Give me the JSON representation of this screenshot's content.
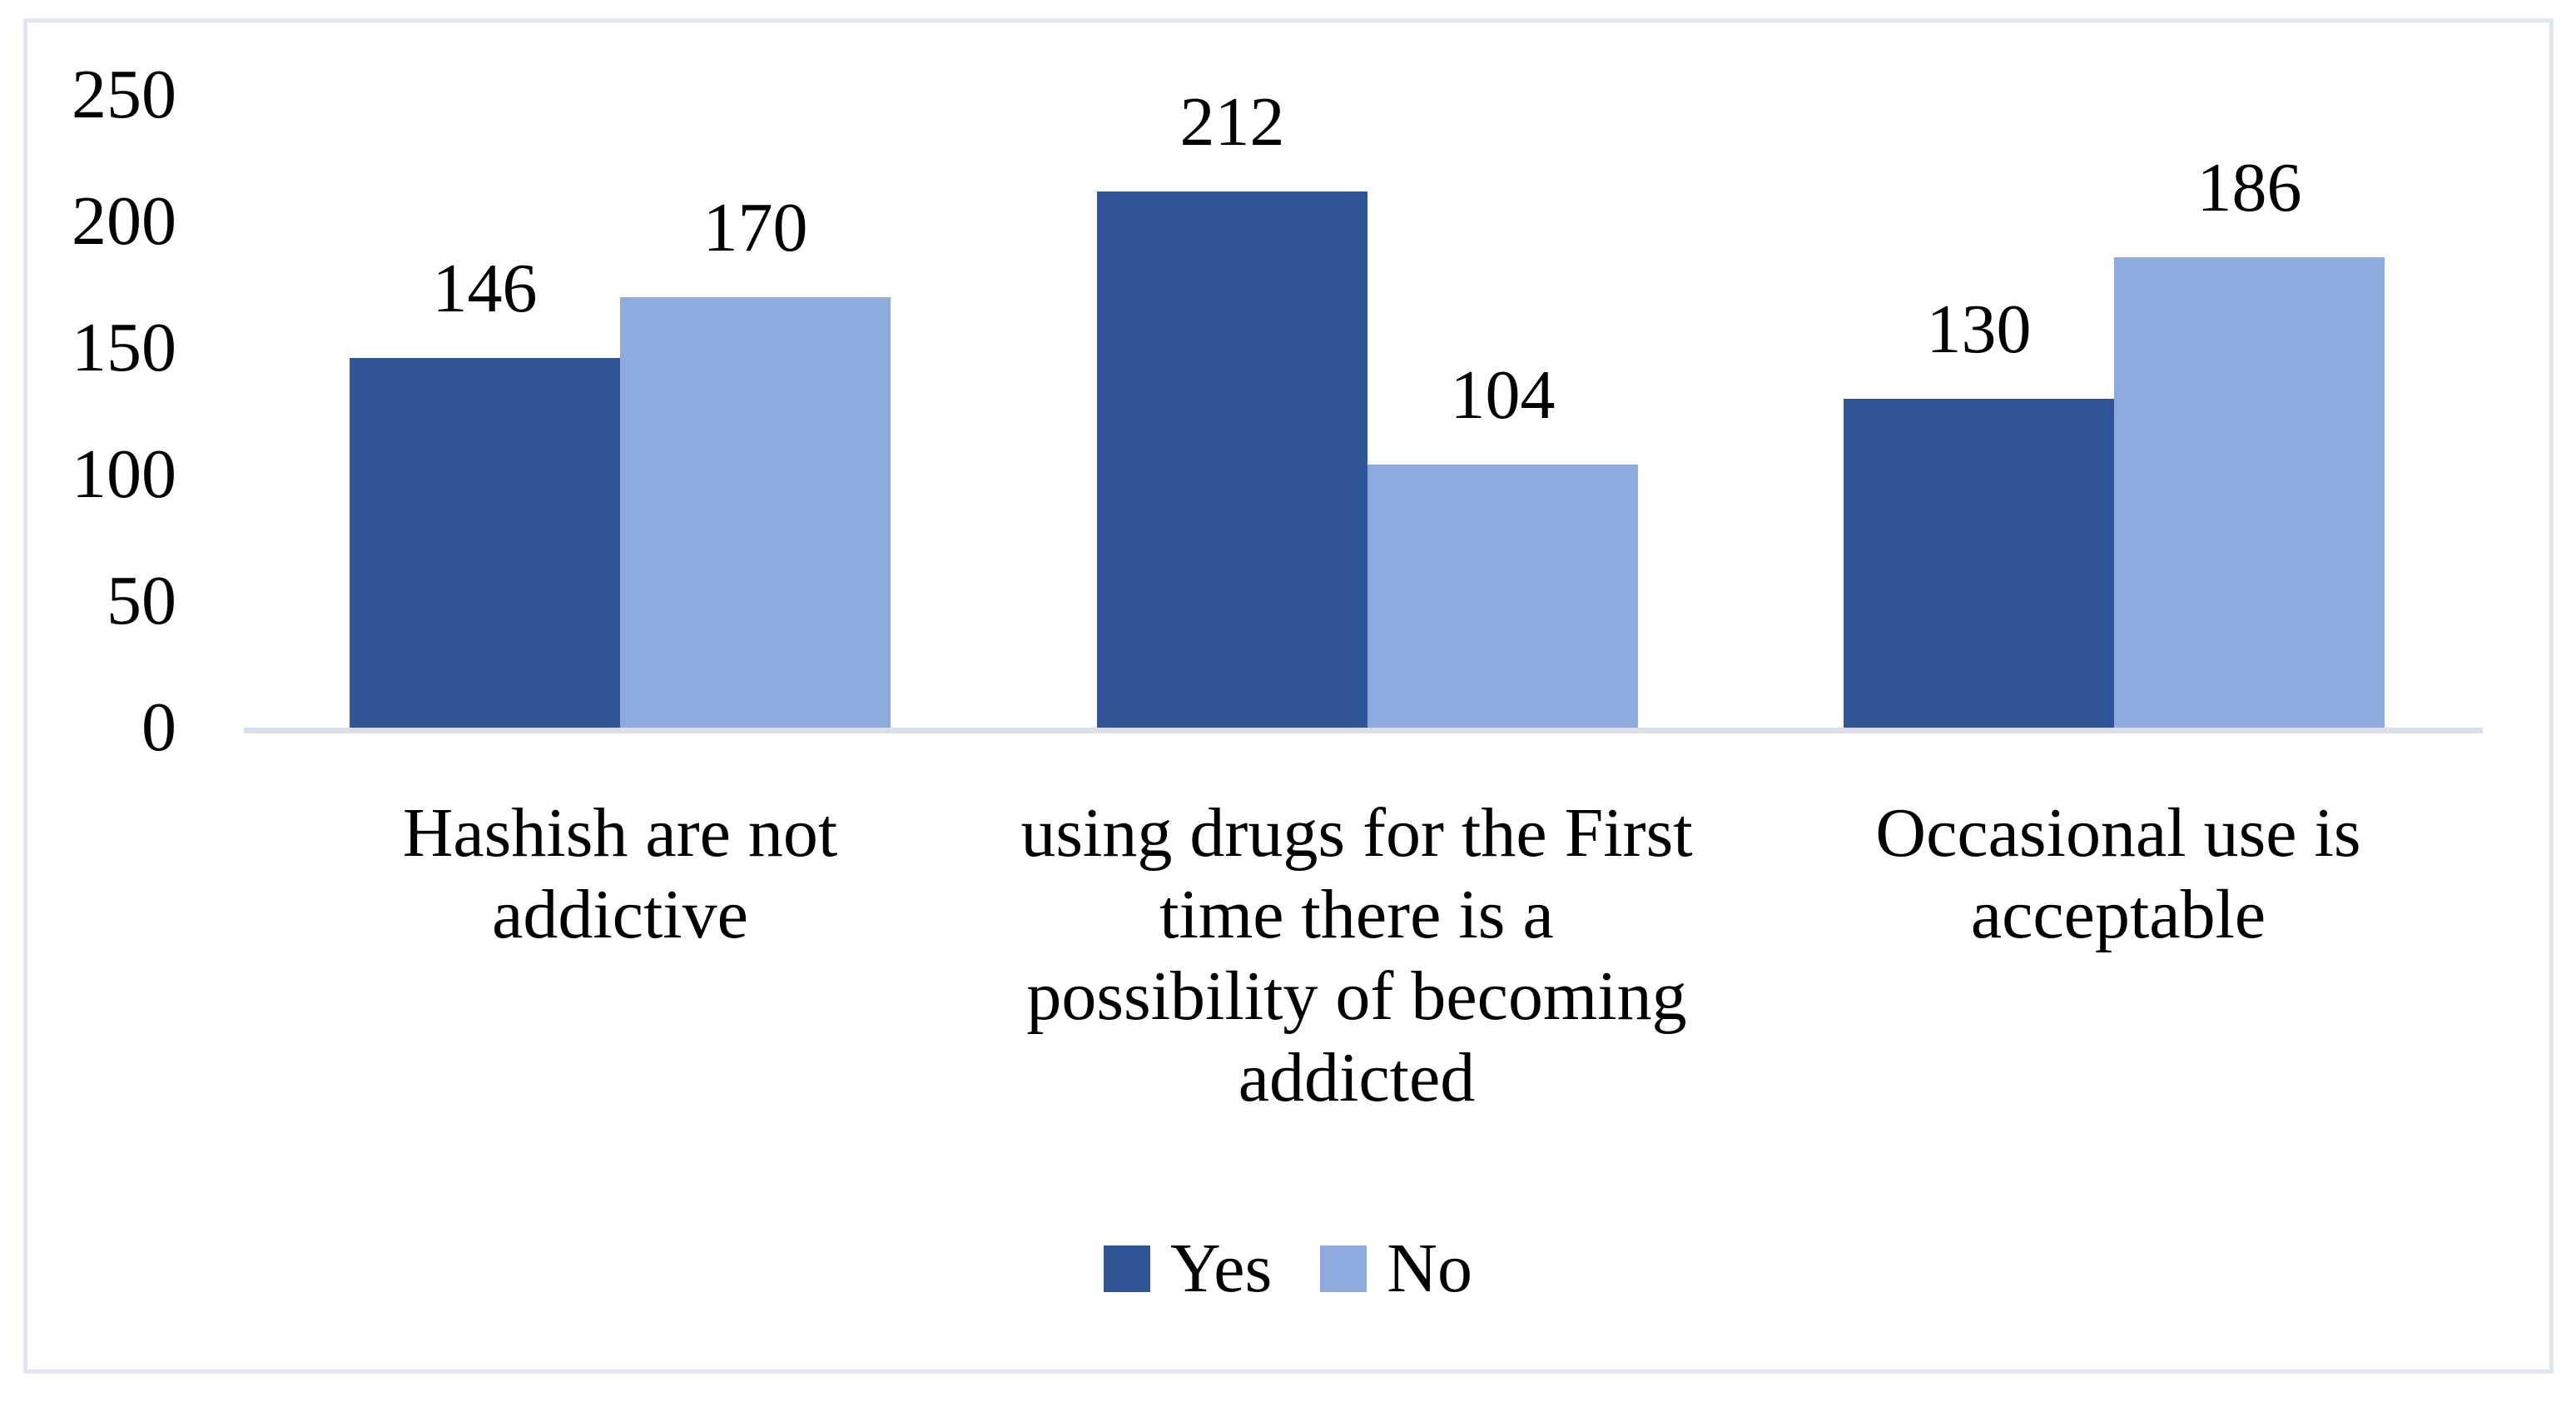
{
  "chart_data": {
    "type": "bar",
    "categories": [
      [
        "Hashish are not",
        "addictive"
      ],
      [
        "using drugs for the First",
        "time there is a",
        "possibility of becoming",
        "addicted"
      ],
      [
        "Occasional use is",
        "acceptable"
      ]
    ],
    "series": [
      {
        "name": "Yes",
        "color": "#2F5597",
        "values": [
          146,
          212,
          130
        ]
      },
      {
        "name": "No",
        "color": "#8FAADC",
        "values": [
          170,
          104,
          186
        ]
      }
    ],
    "y_axis": {
      "min": 0,
      "max": 250,
      "tick_step": 50,
      "tick_labels": [
        "250",
        "200",
        "150",
        "100",
        "50",
        "0"
      ]
    },
    "value_labels_shown": true,
    "grid": false,
    "legend_position": "bottom",
    "text_color": "#000000",
    "axis_line_color": "#D9DEE9",
    "frame_border_color": "#E2E7EF",
    "background_color": "#FFFFFF"
  }
}
